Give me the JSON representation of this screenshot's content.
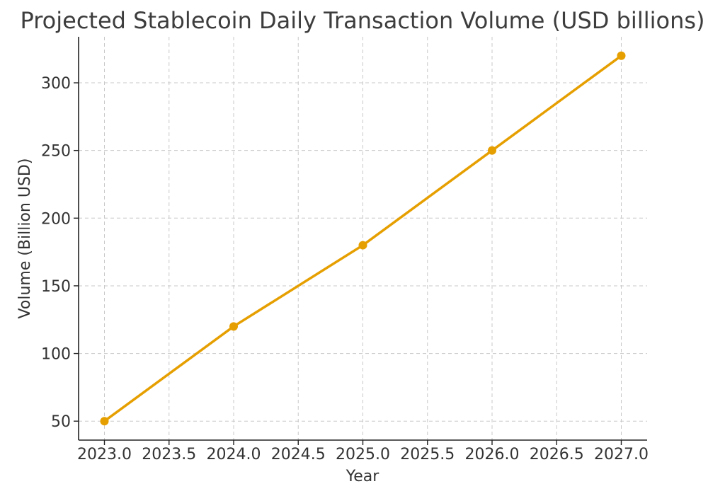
{
  "chart_data": {
    "type": "line",
    "title": "Projected Stablecoin Daily Transaction Volume (USD billions)",
    "xlabel": "Year",
    "ylabel": "Volume (Billion USD)",
    "x": [
      2023,
      2024,
      2025,
      2026,
      2027
    ],
    "series": [
      {
        "values": [
          50,
          120,
          180,
          250,
          320
        ],
        "color": "#e69f00",
        "marker": "circle"
      }
    ],
    "xlim": [
      2022.8,
      2027.2
    ],
    "ylim": [
      36,
      334
    ],
    "xticks": [
      2023.0,
      2023.5,
      2024.0,
      2024.5,
      2025.0,
      2025.5,
      2026.0,
      2026.5,
      2027.0
    ],
    "xtick_labels": [
      "2023.0",
      "2023.5",
      "2024.0",
      "2024.5",
      "2025.0",
      "2025.5",
      "2026.0",
      "2026.5",
      "2027.0"
    ],
    "yticks": [
      50,
      100,
      150,
      200,
      250,
      300
    ],
    "ytick_labels": [
      "50",
      "100",
      "150",
      "200",
      "250",
      "300"
    ],
    "grid": true,
    "grid_style": "dashed",
    "legend": "none"
  }
}
